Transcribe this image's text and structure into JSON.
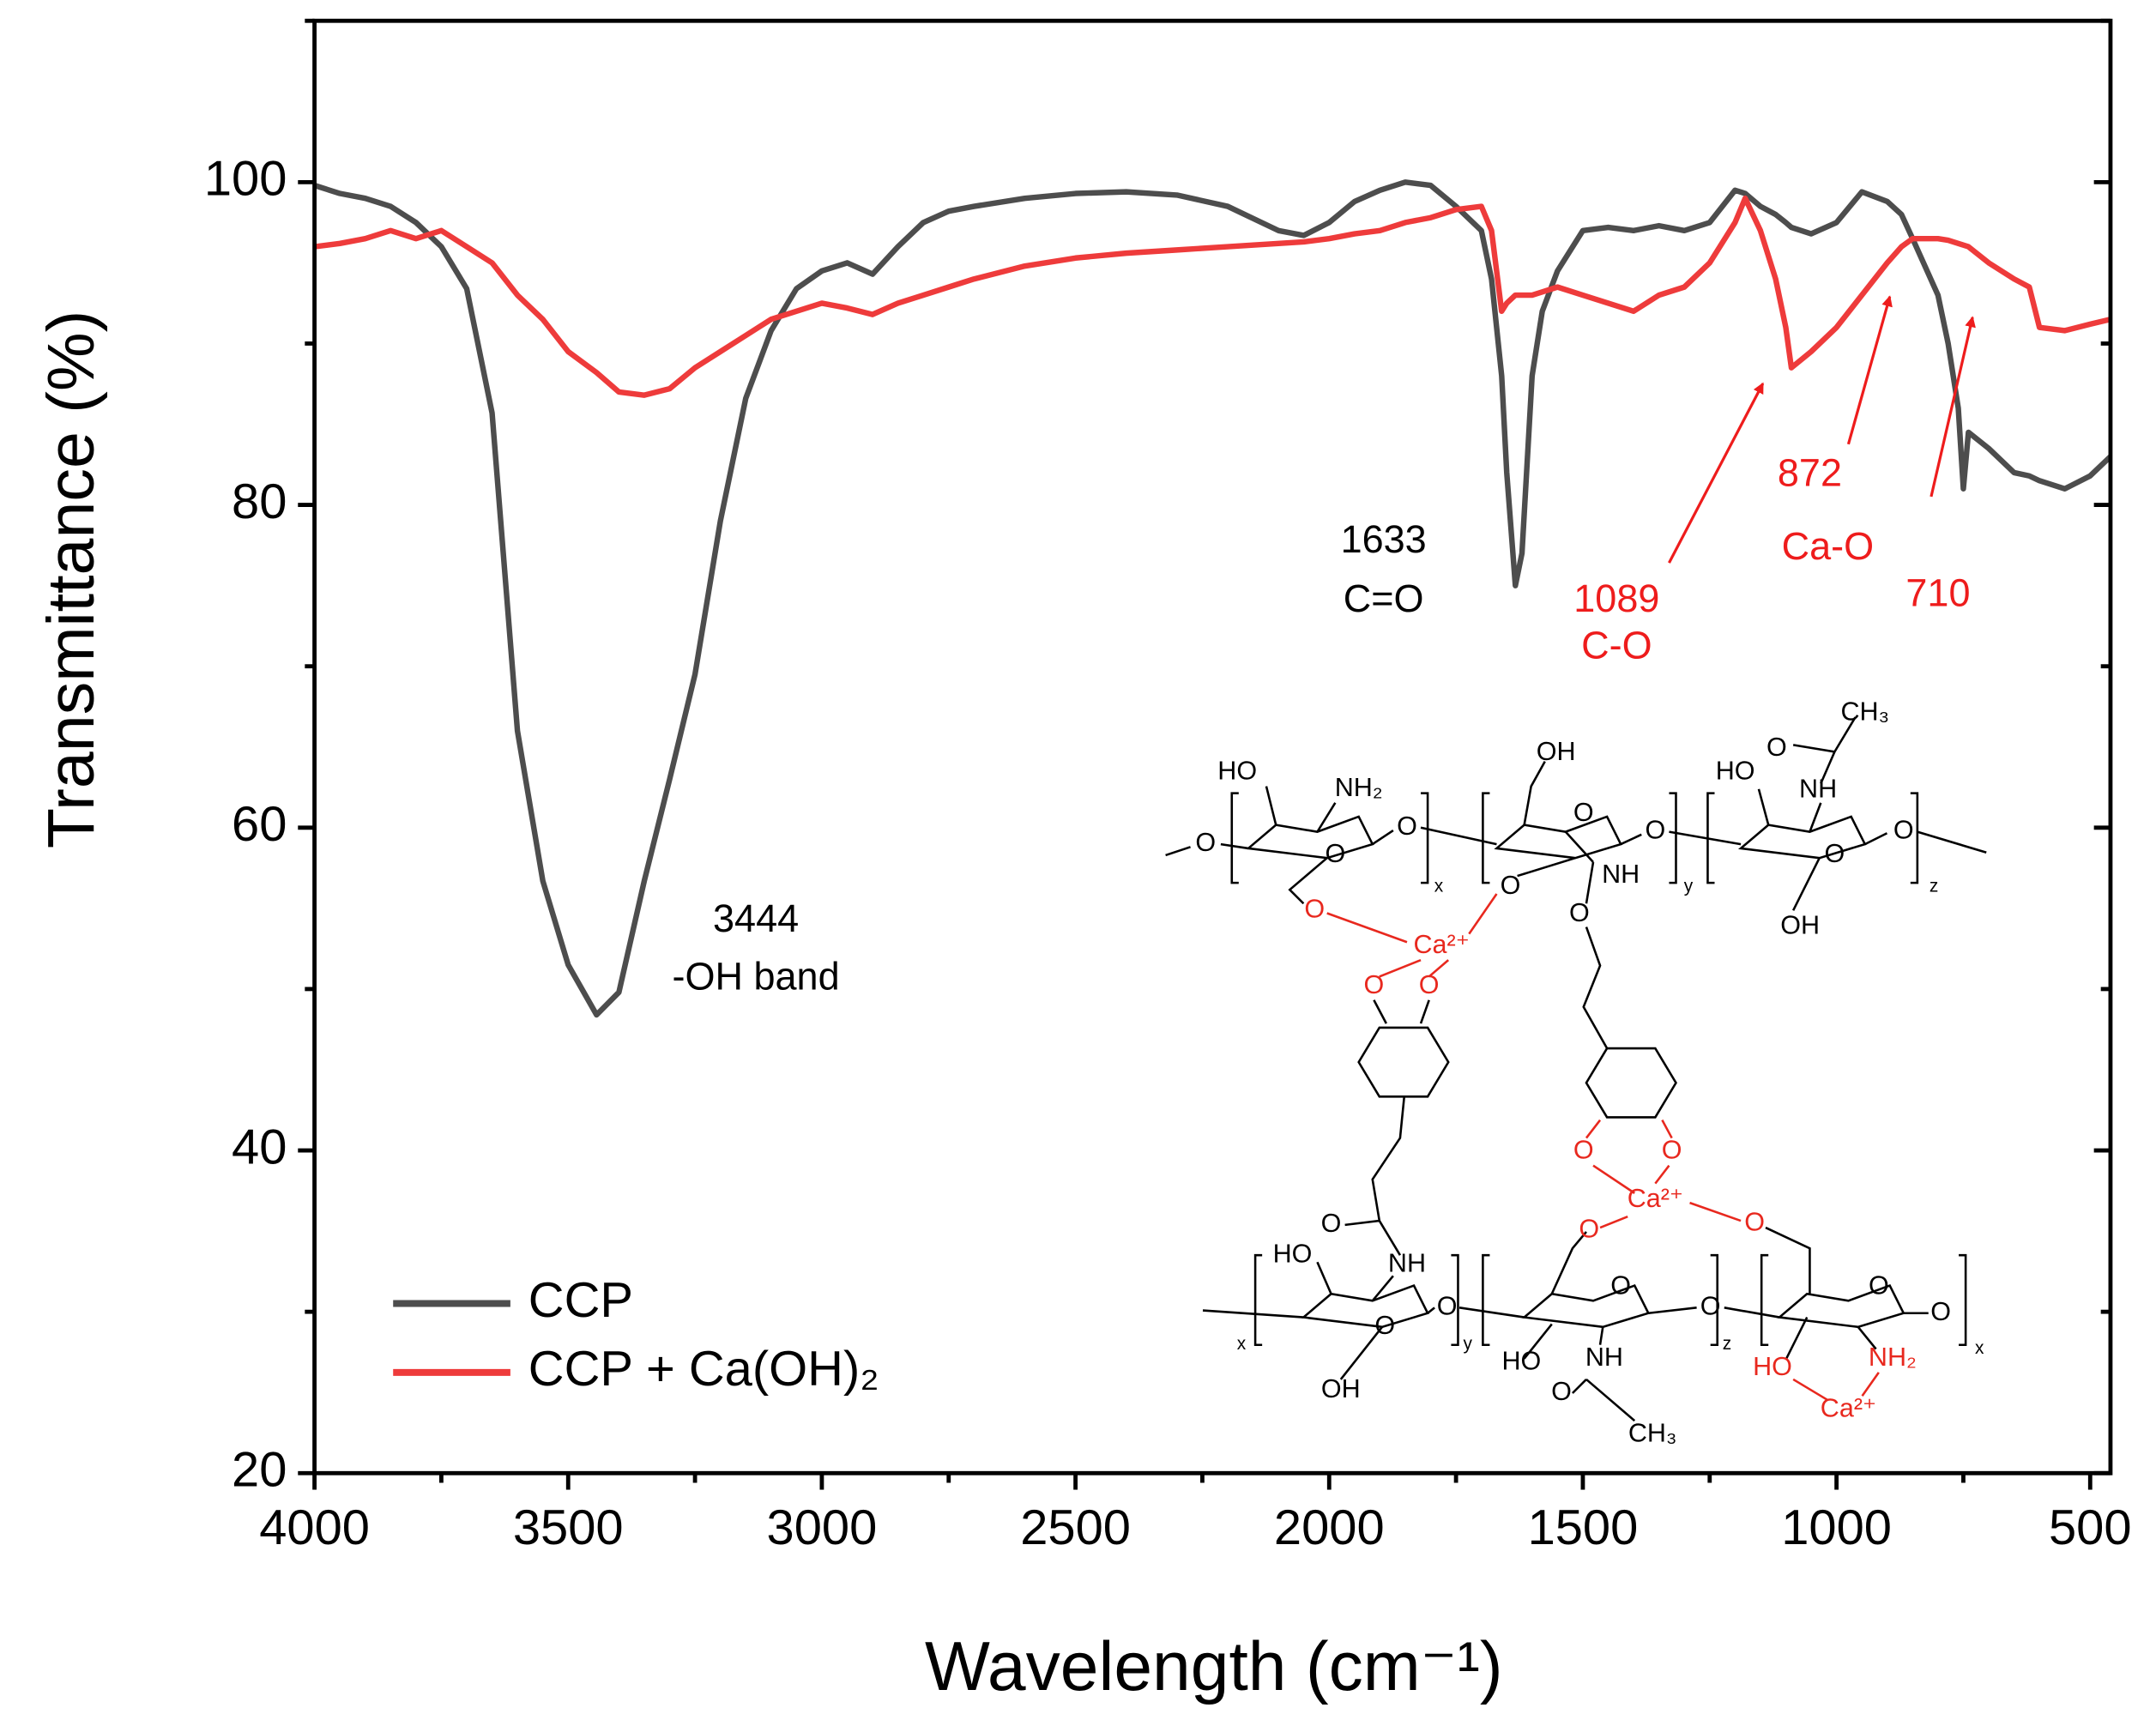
{
  "chart_data": {
    "type": "line",
    "x_label": "Wavelength (cm⁻¹)",
    "y_label": "Transmittance (%)",
    "xlim": [
      4000,
      460
    ],
    "ylim": [
      20,
      110
    ],
    "xticks": [
      4000,
      3500,
      3000,
      2500,
      2000,
      1500,
      1000,
      500
    ],
    "yticks": [
      20,
      40,
      60,
      80,
      100
    ],
    "legend": "lower left",
    "x": [
      4000,
      3950,
      3900,
      3850,
      3800,
      3750,
      3700,
      3650,
      3600,
      3550,
      3500,
      3444,
      3400,
      3350,
      3300,
      3250,
      3200,
      3150,
      3100,
      3050,
      3000,
      2950,
      2900,
      2850,
      2800,
      2750,
      2700,
      2600,
      2500,
      2400,
      2300,
      2200,
      2100,
      2050,
      2000,
      1950,
      1900,
      1850,
      1800,
      1750,
      1700,
      1680,
      1660,
      1650,
      1633,
      1620,
      1600,
      1580,
      1550,
      1500,
      1450,
      1400,
      1350,
      1300,
      1250,
      1200,
      1180,
      1150,
      1120,
      1100,
      1089,
      1050,
      1000,
      950,
      900,
      872,
      850,
      800,
      780,
      760,
      750,
      740,
      700,
      650,
      620,
      600,
      550,
      500,
      460
    ],
    "series": [
      {
        "name": "CCP",
        "color": "#4d4d4d",
        "values": [
          99.8,
          99.3,
          99,
          98.5,
          97.5,
          96,
          93.4,
          85.7,
          66,
          56.7,
          51.5,
          48.4,
          49.8,
          56.7,
          63,
          69.5,
          79,
          86.6,
          90.8,
          93.4,
          94.5,
          95,
          94.3,
          96,
          97.5,
          98.2,
          98.5,
          99,
          99.3,
          99.4,
          99.2,
          98.5,
          97,
          96.7,
          97.5,
          98.8,
          99.5,
          100,
          99.8,
          98.5,
          97,
          94,
          88,
          82,
          75,
          77,
          88,
          92,
          94.5,
          97,
          97.2,
          97,
          97.3,
          97,
          97.5,
          99.5,
          99.3,
          98.5,
          98,
          97.5,
          97.2,
          96.8,
          97.5,
          99.4,
          98.8,
          98,
          96.5,
          93,
          90,
          86,
          81,
          84.5,
          83.5,
          82,
          81.8,
          81.5,
          81,
          81.8,
          83
        ]
      },
      {
        "name": "CCP + Ca(OH)₂",
        "color": "#ee3b3b",
        "values": [
          96,
          96.2,
          96.5,
          97,
          96.5,
          97,
          96,
          95,
          93,
          91.5,
          89.5,
          88.2,
          87,
          86.8,
          87.2,
          88.5,
          89.5,
          90.5,
          91.5,
          92,
          92.5,
          92.2,
          91.8,
          92.5,
          93,
          93.5,
          94,
          94.8,
          95.3,
          95.6,
          95.8,
          96,
          96.2,
          96.3,
          96.5,
          96.8,
          97,
          97.5,
          97.8,
          98.3,
          98.5,
          97,
          92,
          92.5,
          93,
          93,
          93,
          93.2,
          93.5,
          93,
          92.5,
          92,
          93,
          93.5,
          95,
          97.5,
          99,
          97,
          94,
          91,
          88.5,
          89.5,
          91,
          93,
          95,
          96,
          96.5,
          96.5,
          96.4,
          96.2,
          96.1,
          96,
          95,
          94,
          93.5,
          91,
          90.8,
          91.2,
          91.5
        ]
      }
    ],
    "annotations": [
      {
        "text": "3444",
        "color": "#000000"
      },
      {
        "text": "-OH band",
        "color": "#000000"
      },
      {
        "text": "1633",
        "color": "#000000"
      },
      {
        "text": "C=O",
        "color": "#000000"
      },
      {
        "text": "1089",
        "color": "#ee1c1c"
      },
      {
        "text": "C-O",
        "color": "#ee1c1c"
      },
      {
        "text": "872",
        "color": "#ee1c1c"
      },
      {
        "text": "Ca-O",
        "color": "#ee1c1c"
      },
      {
        "text": "710",
        "color": "#ee1c1c"
      }
    ],
    "structure_labels": [
      "HO",
      "NH₂",
      "O",
      "OH",
      "NH",
      "CH₃",
      "Ca²⁺",
      "x",
      "y",
      "z"
    ]
  }
}
